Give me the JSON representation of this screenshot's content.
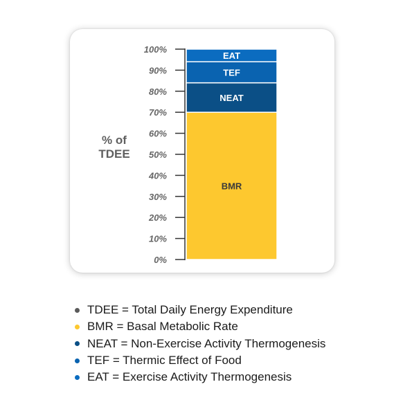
{
  "chart_data": {
    "type": "bar",
    "stacked": true,
    "ylabel": [
      "% of",
      "TDEE"
    ],
    "ylim": [
      0,
      100
    ],
    "yticks": [
      "0%",
      "10%",
      "20%",
      "30%",
      "40%",
      "50%",
      "60%",
      "70%",
      "80%",
      "90%",
      "100%"
    ],
    "series": [
      {
        "name": "BMR",
        "value": 70,
        "color": "#fdc82f",
        "label_color": "#3a3a3a"
      },
      {
        "name": "NEAT",
        "value": 14,
        "color": "#0b4f86",
        "label_color": "#ffffff"
      },
      {
        "name": "TEF",
        "value": 10,
        "color": "#0a63b0",
        "label_color": "#ffffff"
      },
      {
        "name": "EAT",
        "value": 6,
        "color": "#0b6cc0",
        "label_color": "#ffffff"
      }
    ]
  },
  "legend": [
    {
      "text": "TDEE = Total Daily Energy Expenditure",
      "color": "#5a5a5a"
    },
    {
      "text": "BMR = Basal Metabolic Rate",
      "color": "#fdc82f"
    },
    {
      "text": "NEAT = Non-Exercise Activity Thermogenesis",
      "color": "#0b4f86"
    },
    {
      "text": "TEF = Thermic Effect of Food",
      "color": "#0a63b0"
    },
    {
      "text": "EAT = Exercise Activity Thermogenesis",
      "color": "#0b6cc0"
    }
  ]
}
